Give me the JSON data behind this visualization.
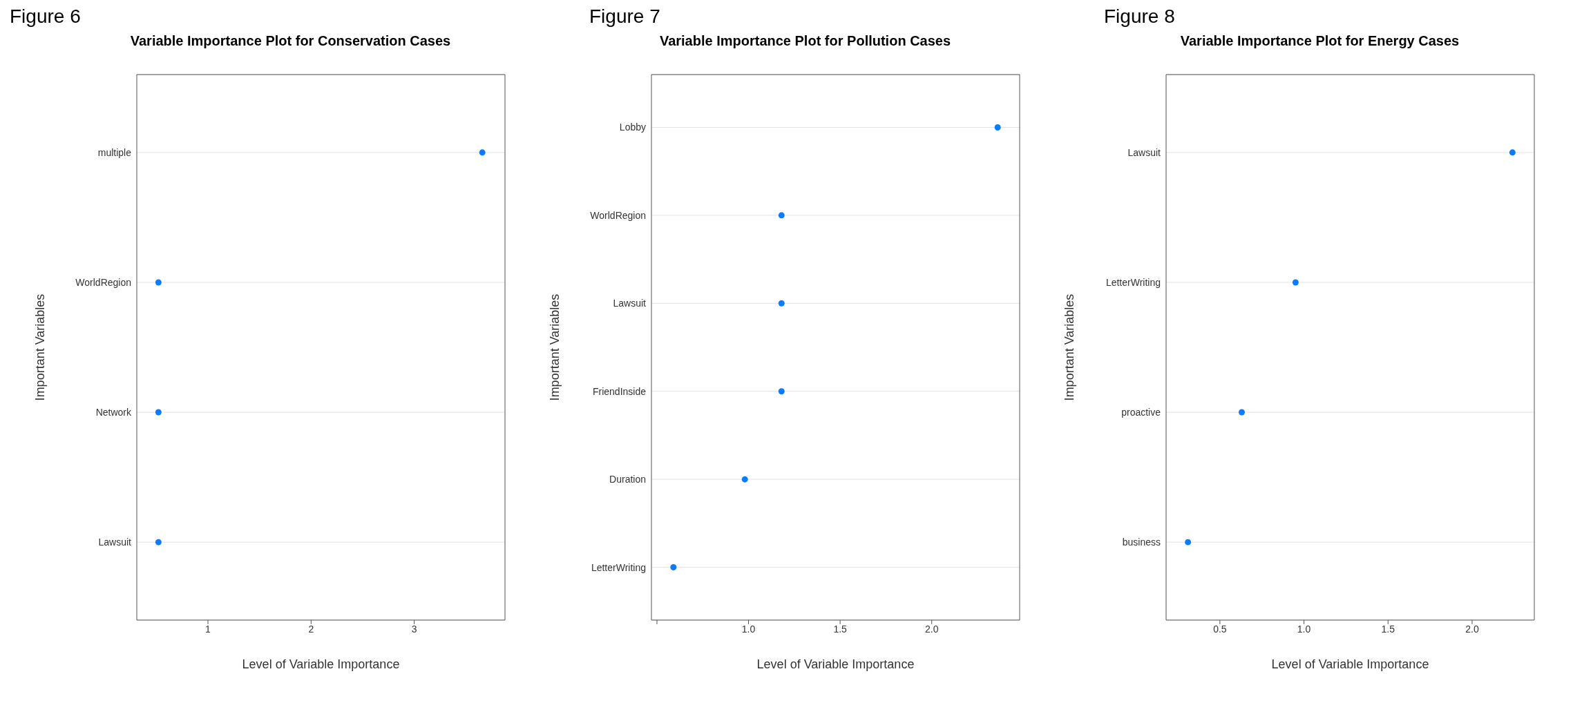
{
  "chart_data": [
    {
      "type": "scatter",
      "orientation": "horizontal",
      "annotations": [
        "Figure 6"
      ],
      "title": "Variable Importance Plot for Conservation Cases",
      "xlabel": "Level of Variable Importance",
      "ylabel": "Important Variables",
      "grid": "y",
      "legend": false,
      "categories": [
        "multiple",
        "WorldRegion",
        "Network",
        "Lawsuit"
      ],
      "series": [
        {
          "color": "#0a7cff",
          "values": [
            3.66,
            0.52,
            0.52,
            0.52
          ]
        }
      ],
      "xlim": [
        0.31,
        3.88
      ],
      "xticks": [
        1,
        2,
        3
      ]
    },
    {
      "type": "scatter",
      "orientation": "horizontal",
      "annotations": [
        "Figure 7"
      ],
      "title": "Variable Importance Plot for Pollution Cases",
      "xlabel": "Level of Variable Importance",
      "ylabel": "Important Variables",
      "grid": "y",
      "legend": false,
      "categories": [
        "Lobby",
        "WorldRegion",
        "Lawsuit",
        "FriendInside",
        "Duration",
        "LetterWriting"
      ],
      "series": [
        {
          "color": "#0a7cff",
          "values": [
            2.36,
            1.18,
            1.18,
            1.18,
            0.98,
            0.59
          ]
        }
      ],
      "xlim": [
        0.47,
        2.48
      ],
      "xticks": [
        {
          "value": 0.5,
          "label": null
        },
        {
          "value": 1.0,
          "label": "1.0"
        },
        {
          "value": 1.5,
          "label": "1.5"
        },
        {
          "value": 2.0,
          "label": "2.0"
        }
      ]
    },
    {
      "type": "scatter",
      "orientation": "horizontal",
      "annotations": [
        "Figure 8"
      ],
      "title": "Variable Importance Plot for Energy Cases",
      "xlabel": "Level of Variable Importance",
      "ylabel": "Important Variables",
      "grid": "y",
      "legend": false,
      "categories": [
        "Lawsuit",
        "LetterWriting",
        "proactive",
        "business"
      ],
      "series": [
        {
          "color": "#0a7cff",
          "values": [
            2.24,
            0.95,
            0.63,
            0.31
          ]
        }
      ],
      "xlim": [
        0.18,
        2.37
      ],
      "xticks": [
        0.5,
        {
          "value": 1.0,
          "label": "1.0"
        },
        {
          "value": 1.5,
          "label": "1.5"
        },
        {
          "value": 2.0,
          "label": "2.0"
        }
      ]
    }
  ]
}
